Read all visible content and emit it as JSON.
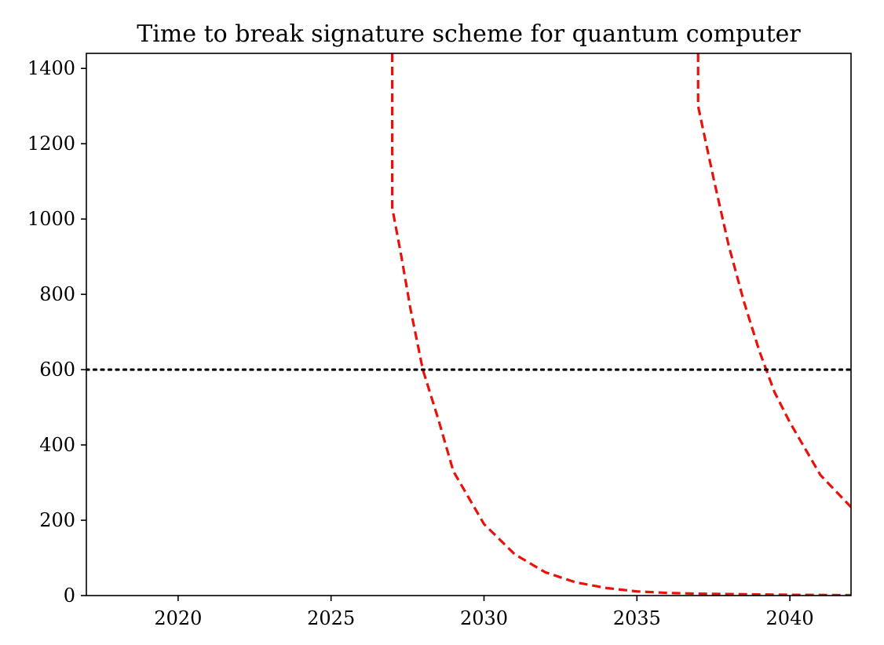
{
  "chart_data": {
    "type": "line",
    "title": "Time to break signature scheme for quantum computer",
    "xlabel": "",
    "ylabel": "",
    "xlim": [
      2017,
      2042
    ],
    "ylim": [
      0,
      1440
    ],
    "xticks": [
      2020,
      2025,
      2030,
      2035,
      2040
    ],
    "yticks": [
      0,
      200,
      400,
      600,
      800,
      1000,
      1200,
      1400
    ],
    "grid": false,
    "series": [
      {
        "style": "dashed",
        "color": "#e8120b",
        "x": [
          2027.0,
          2027.0,
          2027.0,
          2027.3,
          2027.6,
          2028.0,
          2028.5,
          2029.0,
          2029.5,
          2030.0,
          2031.0,
          2032.0,
          2033.0,
          2034.0,
          2035.0,
          2036.0,
          2037.0,
          2038.0,
          2039.0,
          2040.0,
          2041.0,
          2042.0
        ],
        "y": [
          1440,
          1300,
          1030,
          900,
          760,
          600,
          470,
          330,
          260,
          190,
          110,
          62,
          35,
          20,
          11,
          7,
          5,
          4,
          3,
          2,
          1.5,
          1
        ]
      },
      {
        "style": "dashed",
        "color": "#e8120b",
        "x": [
          2037.0,
          2037.0,
          2037.5,
          2038.0,
          2038.5,
          2039.0,
          2039.5,
          2040.0,
          2041.0,
          2042.0
        ],
        "y": [
          1440,
          1300,
          1110,
          930,
          780,
          650,
          540,
          460,
          320,
          235
        ]
      },
      {
        "style": "dotted",
        "color": "#000000",
        "x": [
          2017,
          2042
        ],
        "y": [
          600,
          600
        ]
      }
    ]
  }
}
